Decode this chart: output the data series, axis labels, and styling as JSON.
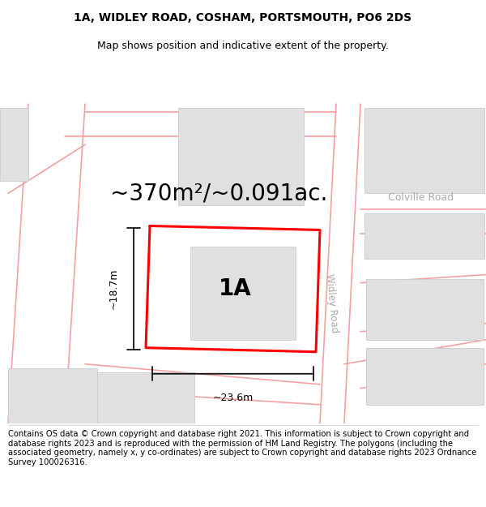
{
  "title": "1A, WIDLEY ROAD, COSHAM, PORTSMOUTH, PO6 2DS",
  "subtitle": "Map shows position and indicative extent of the property.",
  "area_text": "~370m²/~0.091ac.",
  "label_1a": "1A",
  "dim_width": "~23.6m",
  "dim_height": "~18.7m",
  "road_label_widley": "Widley Road",
  "road_label_colville": "Colville Road",
  "footer": "Contains OS data © Crown copyright and database right 2021. This information is subject to Crown copyright and database rights 2023 and is reproduced with the permission of HM Land Registry. The polygons (including the associated geometry, namely x, y co-ordinates) are subject to Crown copyright and database rights 2023 Ordnance Survey 100026316.",
  "bg_color": "#ffffff",
  "plot_outline_color": "#ff0000",
  "road_line_color": "#f5a0a0",
  "building_color": "#e0e0e0",
  "building_edge_color": "#cccccc",
  "road_text_color": "#aaaaaa",
  "dim_line_color": "#111111",
  "title_fontsize": 10,
  "subtitle_fontsize": 9,
  "area_fontsize": 20,
  "label_fontsize": 20,
  "footer_fontsize": 7.2,
  "road_lw": 1.2,
  "plot_lw": 2.2
}
